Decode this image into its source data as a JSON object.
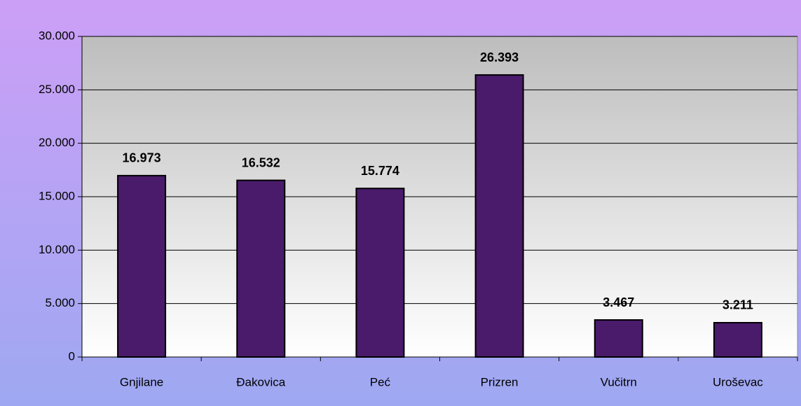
{
  "chart_data": {
    "type": "bar",
    "categories": [
      "Gnjilane",
      "Đakovica",
      "Peć",
      "Prizren",
      "Vučitrn",
      "Uroševac"
    ],
    "values": [
      16973,
      16532,
      15774,
      26393,
      3467,
      3211
    ],
    "value_labels": [
      "16.973",
      "16.532",
      "15.774",
      "26.393",
      "3.467",
      "3.211"
    ],
    "color": "#4a1a6b",
    "ylim": [
      0,
      30000
    ],
    "yticks": [
      0,
      {
        "value": 5000,
        "label": "5.000"
      },
      {
        "value": 10000,
        "label": "10.000"
      },
      {
        "value": 15000,
        "label": "15.000"
      },
      {
        "value": 20000,
        "label": "20.000"
      },
      {
        "value": 25000,
        "label": "25.000"
      },
      {
        "value": 30000,
        "label": "30.000"
      }
    ],
    "grid": true
  }
}
